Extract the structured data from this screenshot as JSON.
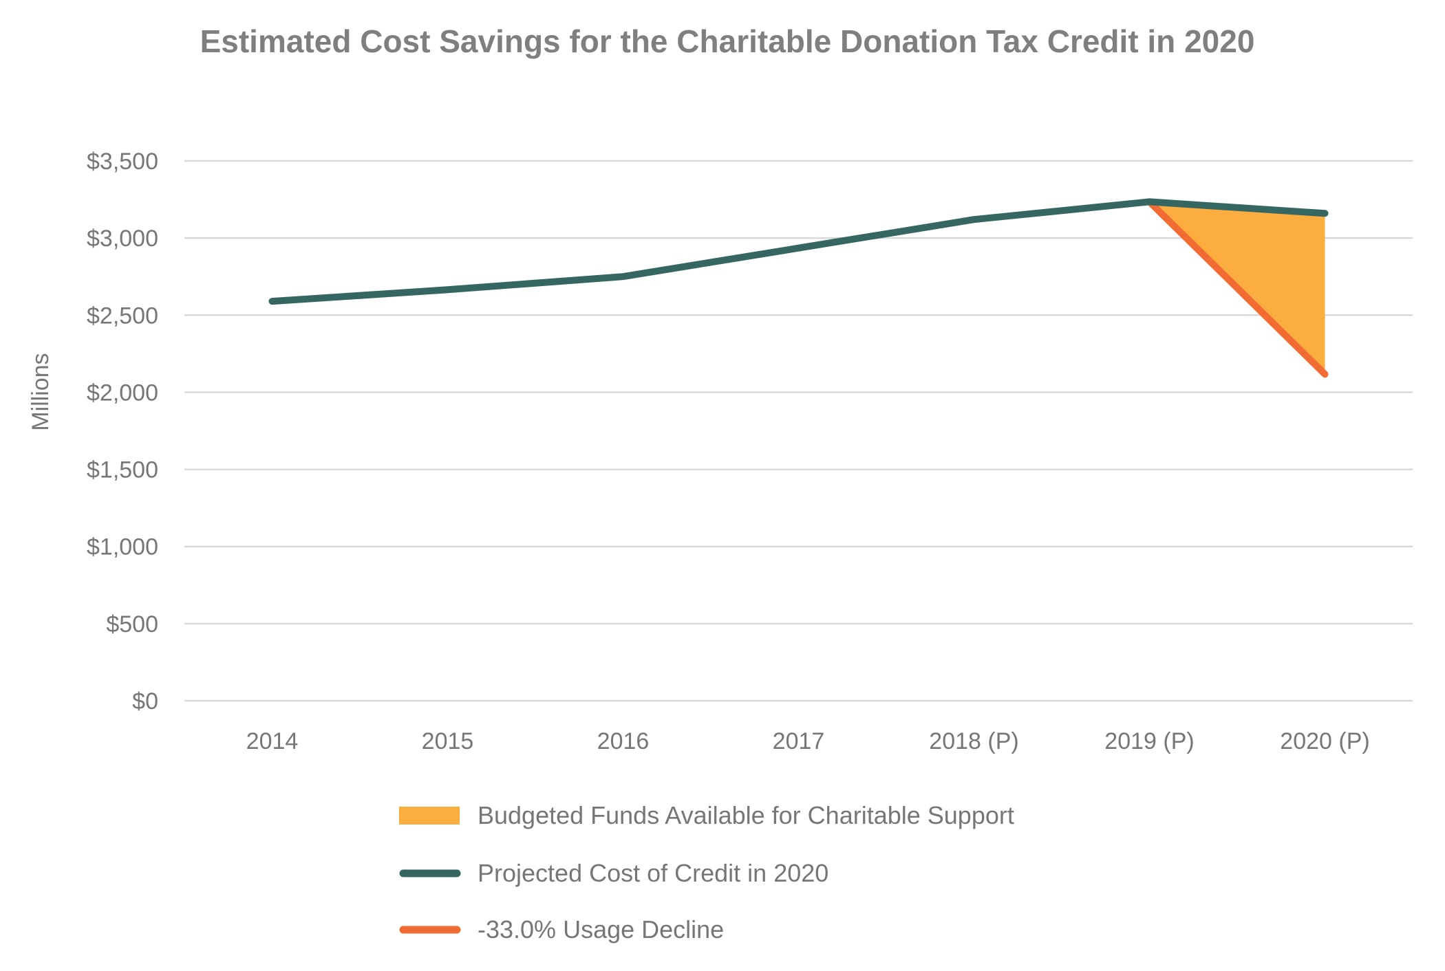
{
  "chart_data": {
    "type": "line",
    "title": "Estimated Cost Savings for the Charitable Donation Tax Credit in 2020",
    "xlabel": "",
    "ylabel": "Millions",
    "categories": [
      "2014",
      "2015",
      "2016",
      "2017",
      "2018 (P)",
      "2019 (P)",
      "2020 (P)"
    ],
    "ylim": [
      0,
      3500
    ],
    "yticks": [
      0,
      500,
      1000,
      1500,
      2000,
      2500,
      3000,
      3500
    ],
    "ytick_labels": [
      "$0",
      "$500",
      "$1,000",
      "$1,500",
      "$2,000",
      "$2,500",
      "$3,000",
      "$3,500"
    ],
    "grid": true,
    "legend_position": "bottom",
    "series": [
      {
        "name": "Budgeted Funds Available for Charitable Support",
        "kind": "area",
        "color": "#FBAD3F",
        "values": [
          null,
          null,
          null,
          null,
          null,
          3235,
          3160
        ],
        "lower_values": [
          null,
          null,
          null,
          null,
          null,
          3235,
          2117
        ]
      },
      {
        "name": "Projected Cost of Credit in 2020",
        "kind": "line",
        "color": "#356662",
        "values": [
          2590,
          2665,
          2750,
          2935,
          3120,
          3235,
          3160
        ]
      },
      {
        "name": "-33.0% Usage Decline",
        "kind": "line",
        "color": "#F26B32",
        "values": [
          null,
          null,
          null,
          null,
          null,
          3235,
          2117
        ]
      }
    ]
  }
}
